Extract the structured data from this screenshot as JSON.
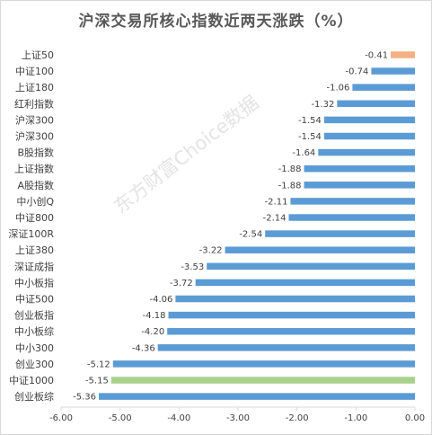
{
  "chart_data": {
    "type": "bar",
    "orientation": "horizontal",
    "title": "沪深交易所核心指数近两天涨跌（%）",
    "categories": [
      "上证50",
      "中证100",
      "上证180",
      "红利指数",
      "沪深300",
      "沪深300",
      "B股指数",
      "上证指数",
      "A股指数",
      "中小创Q",
      "中证800",
      "深证100R",
      "上证380",
      "深证成指",
      "中小板指",
      "中证500",
      "创业板指",
      "中小板综",
      "中小300",
      "创业300",
      "中证1000",
      "创业板综"
    ],
    "values": [
      -0.41,
      -0.74,
      -1.06,
      -1.32,
      -1.54,
      -1.54,
      -1.64,
      -1.88,
      -1.88,
      -2.11,
      -2.14,
      -2.54,
      -3.22,
      -3.53,
      -3.72,
      -4.06,
      -4.18,
      -4.2,
      -4.36,
      -5.12,
      -5.15,
      -5.36
    ],
    "value_labels": [
      "-0.41",
      "-0.74",
      "-1.06",
      "-1.32",
      "-1.54",
      "-1.54",
      "-1.64",
      "-1.88",
      "-1.88",
      "-2.11",
      "-2.14",
      "-2.54",
      "-3.22",
      "-3.53",
      "-3.72",
      "-4.06",
      "-4.18",
      "-4.20",
      "-4.36",
      "-5.12",
      "-5.15",
      "-5.36"
    ],
    "bar_colors": [
      "#f4b183",
      "#5b9bd5",
      "#5b9bd5",
      "#5b9bd5",
      "#5b9bd5",
      "#5b9bd5",
      "#5b9bd5",
      "#5b9bd5",
      "#5b9bd5",
      "#5b9bd5",
      "#5b9bd5",
      "#5b9bd5",
      "#5b9bd5",
      "#5b9bd5",
      "#5b9bd5",
      "#5b9bd5",
      "#5b9bd5",
      "#5b9bd5",
      "#5b9bd5",
      "#5b9bd5",
      "#a9d18e",
      "#5b9bd5"
    ],
    "xlim": [
      -6.0,
      0.0
    ],
    "xticks": [
      -6,
      -5,
      -4,
      -3,
      -2,
      -1,
      0
    ],
    "xtick_labels": [
      "-6.00",
      "-5.00",
      "-4.00",
      "-3.00",
      "-2.00",
      "-1.00",
      "0.00"
    ],
    "grid": false,
    "legend": "none"
  },
  "watermark": "东方财富Choice数据"
}
